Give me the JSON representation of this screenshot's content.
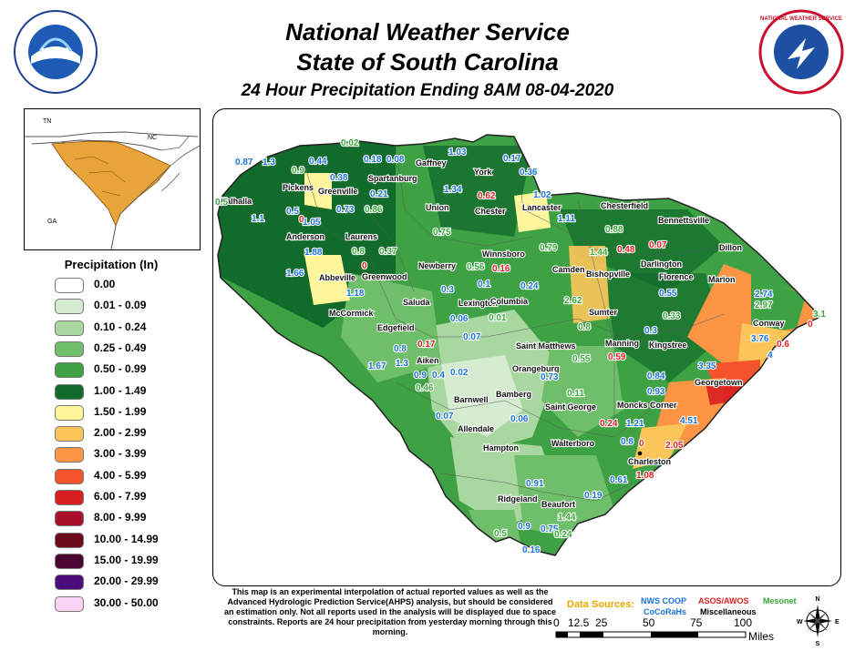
{
  "header": {
    "line1": "National Weather Service",
    "line2": "State of South Carolina",
    "line3": "24 Hour Precipitation Ending 8AM 08-04-2020"
  },
  "logos": {
    "left_text": "NOAA",
    "right_text": "NATIONAL WEATHER SERVICE"
  },
  "inset": {
    "states": [
      "TN",
      "NC",
      "GA"
    ],
    "highlight_color": "#e8a33a"
  },
  "legend": {
    "title": "Precipitation (In)",
    "items": [
      {
        "label": "0.00",
        "color": "#ffffff"
      },
      {
        "label": "0.01 - 0.09",
        "color": "#d6ecd1"
      },
      {
        "label": "0.10 - 0.24",
        "color": "#a8d8a0"
      },
      {
        "label": "0.25 - 0.49",
        "color": "#6fbf6a"
      },
      {
        "label": "0.50 - 0.99",
        "color": "#3ea245"
      },
      {
        "label": "1.00 - 1.49",
        "color": "#116b2a"
      },
      {
        "label": "1.50 - 1.99",
        "color": "#fff59a"
      },
      {
        "label": "2.00 - 2.99",
        "color": "#fcc55a"
      },
      {
        "label": "3.00 - 3.99",
        "color": "#fb9544"
      },
      {
        "label": "4.00 - 5.99",
        "color": "#f5532b"
      },
      {
        "label": "6.00 - 7.99",
        "color": "#d81f1f"
      },
      {
        "label": "8.00 - 9.99",
        "color": "#a80f2a"
      },
      {
        "label": "10.00 - 14.99",
        "color": "#6b0a1d"
      },
      {
        "label": "15.00 - 19.99",
        "color": "#4a0530"
      },
      {
        "label": "20.00 - 29.99",
        "color": "#4b0d7a"
      },
      {
        "label": "30.00 - 50.00",
        "color": "#fbd3f4"
      }
    ]
  },
  "cities": [
    "Walhalla",
    "Pickens",
    "Greenville",
    "Spartanburg",
    "Gaffney",
    "York",
    "Chester",
    "Lancaster",
    "Chesterfield",
    "Bennettsville",
    "Anderson",
    "Laurens",
    "Union",
    "Winnsboro",
    "Camden",
    "Bishopville",
    "Darlington",
    "Dillon",
    "Abbeville",
    "Greenwood",
    "Newberry",
    "Florence",
    "Marion",
    "Saluda",
    "Lexington",
    "Columbia",
    "Sumter",
    "McCormick",
    "Edgefield",
    "Conway",
    "Saint Matthews",
    "Manning",
    "Kingstree",
    "Aiken",
    "Orangeburg",
    "Georgetown",
    "Barnwell",
    "Bamberg",
    "Saint George",
    "Moncks Corner",
    "Allendale",
    "Hampton",
    "Walterboro",
    "Charleston",
    "Ridgeland",
    "Beaufort"
  ],
  "observations": {
    "nws_coop": [
      "1.03",
      "0.44",
      "0.18",
      "0.08",
      "0.38",
      "0.17",
      "0.36",
      "0.87",
      "1.3",
      "0.21",
      "1.34",
      "1.02",
      "1.1",
      "0.5",
      "0.73",
      "1.05",
      "1.11",
      "1.88",
      "1.66",
      "1.18",
      "0.3",
      "0.1",
      "0.24",
      "0.06",
      "0.07",
      "0.55",
      "0.3",
      "3.76",
      "0.8",
      "1.3",
      "0.9",
      "0.4",
      "0.02",
      "1.67",
      "0.73",
      "0.84",
      "0.93",
      "0.07",
      "0.06",
      "1.21",
      "0.8",
      "0.61",
      "0.19",
      "0.91",
      "0.9",
      "0.75",
      "0.16",
      "2.74",
      "4",
      "3.35",
      "4.51"
    ],
    "asos_awos": [
      "0.62",
      "0.48",
      "0.07",
      "0.16",
      "0",
      "0.17",
      "0.59",
      "0.24",
      "0",
      "2.05",
      "1.08",
      "0.6",
      "0",
      "0"
    ],
    "cocorahs_mesonet": [
      "0.02",
      "0.9",
      "0.5",
      "0.86",
      "0.75",
      "0.8",
      "0.37",
      "0.79",
      "0.88",
      "1.44",
      "0.56",
      "2.62",
      "0.01",
      "0.8",
      "0.33",
      "0.55",
      "0.11",
      "0.46",
      "2.97",
      "3.1",
      "1.44",
      "0.24",
      "0.5"
    ]
  },
  "disclaimer": "This map is an experimental interpolation of actual reported values as well as the Advanced Hydrologic Prediction Service(AHPS) analysis, but should be considered an estimation only. Not all reports used in the analysis will be displayed due to space constraints. Reports are 24 hour precipitation from yesterday morning through this morning.",
  "data_sources": {
    "label": "Data Sources:",
    "nws_coop": "NWS COOP",
    "asos": "ASOS/AWOS",
    "mesonet": "Mesonet",
    "cocorahs": "CoCoRaHs",
    "misc": "Miscellaneous"
  },
  "scale": {
    "ticks": [
      "0",
      "12.5",
      "25",
      "50",
      "75",
      "100"
    ],
    "unit": "Miles"
  },
  "compass": {
    "n": "N",
    "s": "S",
    "e": "E",
    "w": "W"
  },
  "colors": {
    "nws_coop": "#1a73d9",
    "asos": "#e0201f",
    "mesonet": "#3aa83a",
    "misc": "#000000",
    "data_sources_label": "#e8a800"
  }
}
